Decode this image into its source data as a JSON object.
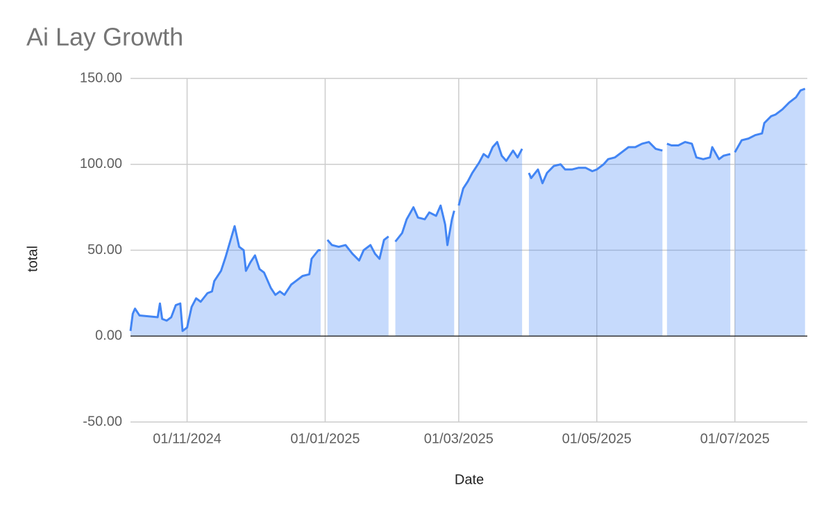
{
  "chart_data": {
    "type": "area",
    "title": "Ai Lay Growth",
    "x_label": "Date",
    "y_label": "total",
    "x": [
      "2024-10-07",
      "2024-10-08",
      "2024-10-09",
      "2024-10-11",
      "2024-10-19",
      "2024-10-20",
      "2024-10-21",
      "2024-10-23",
      "2024-10-25",
      "2024-10-27",
      "2024-10-29",
      "2024-10-30",
      "2024-11-01",
      "2024-11-03",
      "2024-11-05",
      "2024-11-07",
      "2024-11-10",
      "2024-11-12",
      "2024-11-13",
      "2024-11-16",
      "2024-11-18",
      "2024-11-20",
      "2024-11-22",
      "2024-11-24",
      "2024-11-26",
      "2024-11-27",
      "2024-11-29",
      "2024-12-01",
      "2024-12-03",
      "2024-12-05",
      "2024-12-08",
      "2024-12-10",
      "2024-12-12",
      "2024-12-14",
      "2024-12-17",
      "2024-12-19",
      "2024-12-22",
      "2024-12-25",
      "2024-12-26",
      "2024-12-29",
      "2024-12-30",
      "2024-12-31",
      "2025-01-02",
      "2025-01-04",
      "2025-01-07",
      "2025-01-10",
      "2025-01-13",
      "2025-01-16",
      "2025-01-18",
      "2025-01-21",
      "2025-01-23",
      "2025-01-25",
      "2025-01-27",
      "2025-01-29",
      "2025-01-31",
      "2025-02-01",
      "2025-02-04",
      "2025-02-06",
      "2025-02-09",
      "2025-02-11",
      "2025-02-14",
      "2025-02-16",
      "2025-02-19",
      "2025-02-21",
      "2025-02-23",
      "2025-02-24",
      "2025-02-26",
      "2025-02-27",
      "2025-02-28",
      "2025-03-01",
      "2025-03-03",
      "2025-03-05",
      "2025-03-07",
      "2025-03-10",
      "2025-03-12",
      "2025-03-14",
      "2025-03-16",
      "2025-03-18",
      "2025-03-20",
      "2025-03-22",
      "2025-03-25",
      "2025-03-27",
      "2025-03-29",
      "2025-03-31",
      "2025-04-01",
      "2025-04-02",
      "2025-04-05",
      "2025-04-07",
      "2025-04-09",
      "2025-04-12",
      "2025-04-15",
      "2025-04-17",
      "2025-04-20",
      "2025-04-23",
      "2025-04-26",
      "2025-04-29",
      "2025-05-01",
      "2025-05-04",
      "2025-05-06",
      "2025-05-09",
      "2025-05-12",
      "2025-05-15",
      "2025-05-18",
      "2025-05-21",
      "2025-05-24",
      "2025-05-27",
      "2025-05-30",
      "2025-05-31",
      "2025-06-01",
      "2025-06-03",
      "2025-06-06",
      "2025-06-09",
      "2025-06-12",
      "2025-06-14",
      "2025-06-17",
      "2025-06-20",
      "2025-06-21",
      "2025-06-24",
      "2025-06-26",
      "2025-06-29",
      "2025-06-30",
      "2025-07-01",
      "2025-07-04",
      "2025-07-07",
      "2025-07-10",
      "2025-07-13",
      "2025-07-14",
      "2025-07-17",
      "2025-07-19",
      "2025-07-22",
      "2025-07-25",
      "2025-07-28",
      "2025-07-30",
      "2025-08-01"
    ],
    "values": [
      3,
      13,
      16,
      12,
      11,
      19,
      10,
      9,
      11,
      18,
      19,
      3,
      5,
      17,
      22,
      20,
      25,
      26,
      32,
      38,
      46,
      55,
      64,
      52,
      50,
      38,
      43,
      47,
      39,
      37,
      28,
      24,
      26,
      24,
      30,
      32,
      35,
      36,
      45,
      50,
      50,
      null,
      56,
      53,
      52,
      53,
      48,
      44,
      50,
      53,
      48,
      45,
      56,
      58,
      null,
      55,
      60,
      68,
      75,
      69,
      68,
      72,
      70,
      76,
      65,
      53,
      68,
      73,
      null,
      76,
      86,
      90,
      95,
      101,
      106,
      104,
      110,
      113,
      105,
      102,
      108,
      104,
      109,
      null,
      95,
      92,
      97,
      89,
      95,
      99,
      100,
      97,
      97,
      98,
      98,
      96,
      97,
      100,
      103,
      104,
      107,
      110,
      110,
      112,
      113,
      109,
      108,
      null,
      112,
      111,
      111,
      113,
      112,
      104,
      103,
      104,
      110,
      103,
      105,
      106,
      null,
      107,
      114,
      115,
      117,
      118,
      124,
      128,
      129,
      132,
      136,
      139,
      143,
      144
    ],
    "color": "#4285f4",
    "xlim": [
      "2024-10-07",
      "2025-08-02"
    ],
    "xticks": [
      {
        "value": "2024-11-01",
        "label": "01/11/2024"
      },
      {
        "value": "2025-01-01",
        "label": "01/01/2025"
      },
      {
        "value": "2025-03-01",
        "label": "01/03/2025"
      },
      {
        "value": "2025-05-01",
        "label": "01/05/2025"
      },
      {
        "value": "2025-07-01",
        "label": "01/07/2025"
      }
    ],
    "ylim": [
      -50,
      150
    ],
    "yticks": [
      {
        "value": -50,
        "label": "-50.00"
      },
      {
        "value": 0,
        "label": "0.00"
      },
      {
        "value": 50,
        "label": "50.00"
      },
      {
        "value": 100,
        "label": "100.00"
      },
      {
        "value": 150,
        "label": "150.00"
      }
    ],
    "grid": true
  }
}
